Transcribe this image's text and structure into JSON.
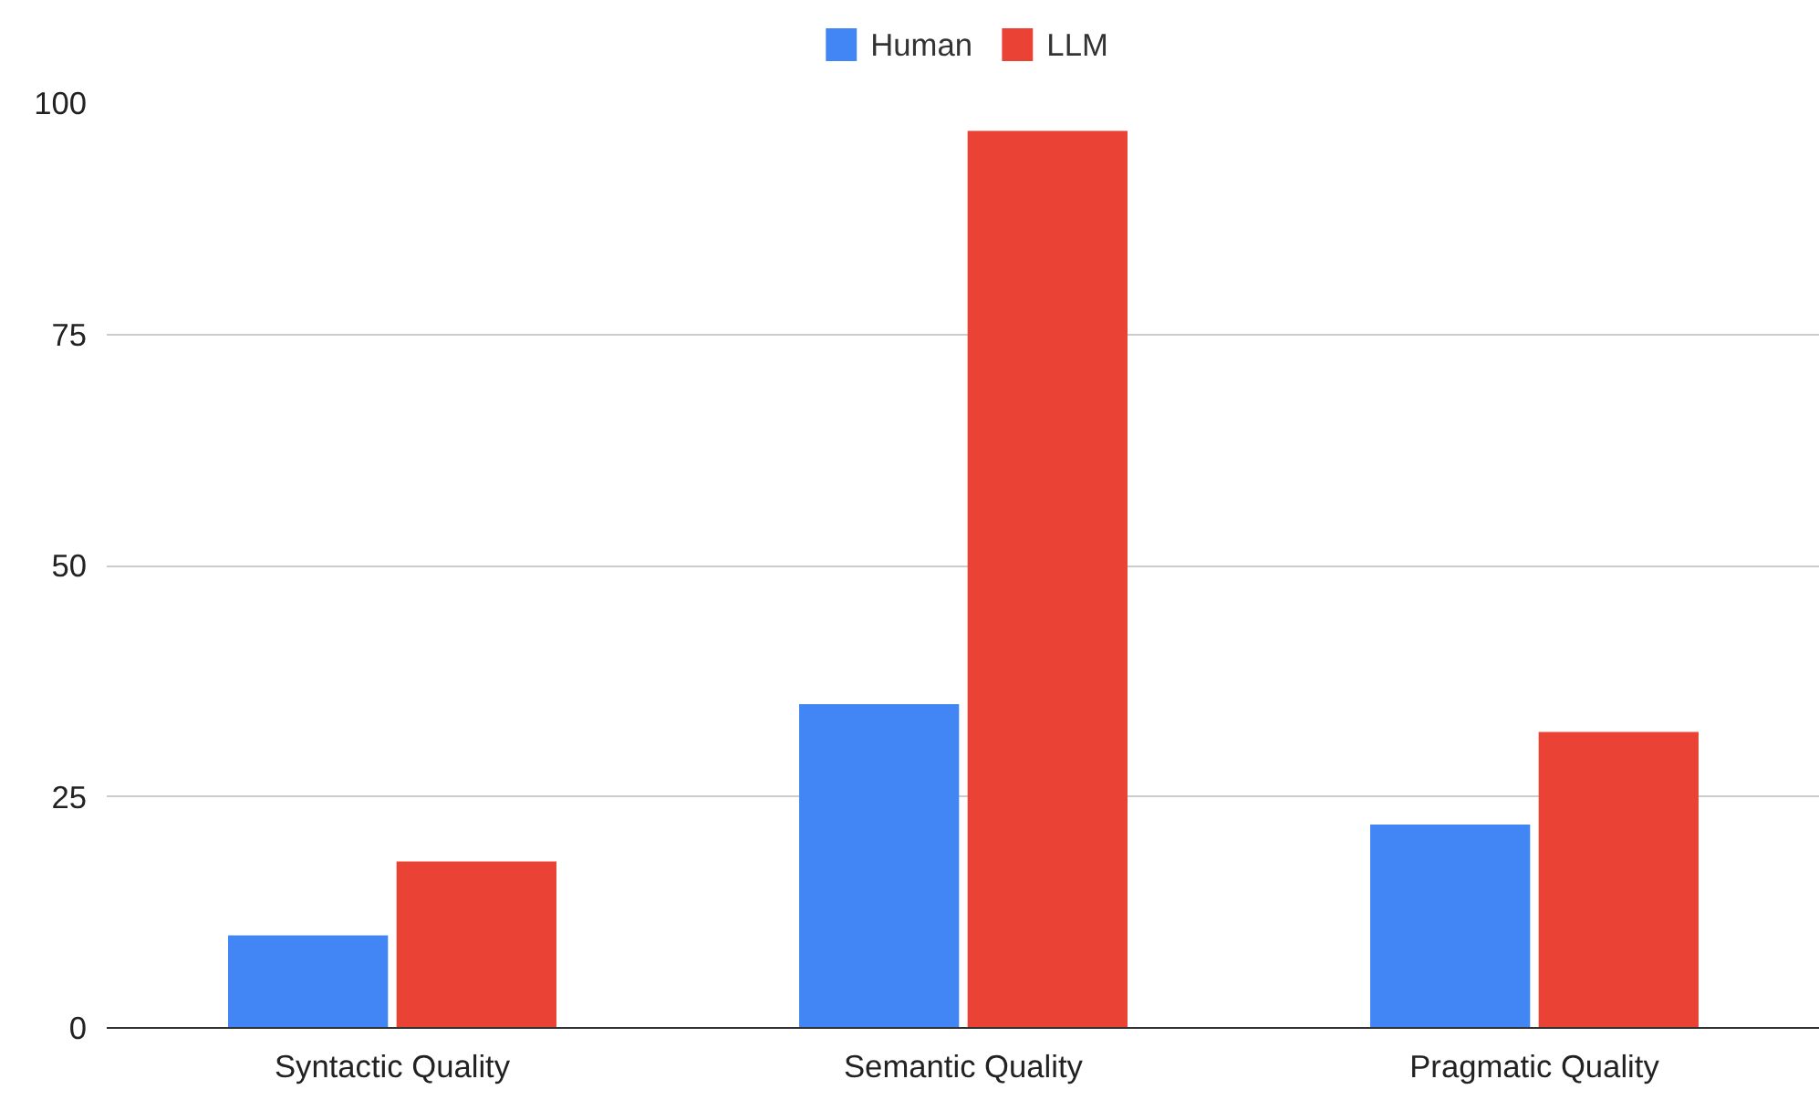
{
  "chart_data": {
    "type": "bar",
    "categories": [
      "Syntactic Quality",
      "Semantic Quality",
      "Pragmatic Quality"
    ],
    "series": [
      {
        "name": "Human",
        "color": "#4285f4",
        "values": [
          10,
          35,
          22
        ]
      },
      {
        "name": "LLM",
        "color": "#ea4335",
        "values": [
          18,
          97,
          32
        ]
      }
    ],
    "ylim": [
      0,
      100
    ],
    "yticks": [
      0,
      25,
      50,
      75,
      100
    ],
    "grid": "y",
    "legend": "top"
  }
}
